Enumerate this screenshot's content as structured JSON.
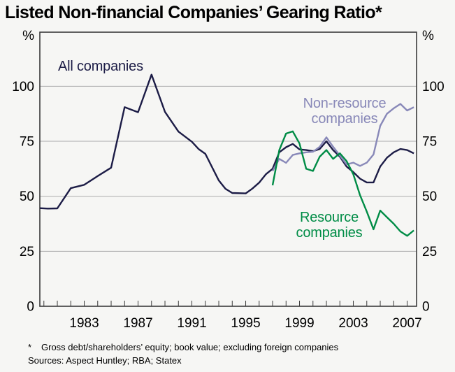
{
  "title": "Listed Non-financial Companies’ Gearing Ratio*",
  "footnote": {
    "marker": "*",
    "line1": "Gross debt/shareholders’ equity; book value; excluding foreign companies",
    "sources": "Sources: Aspect Huntley; RBA; Statex"
  },
  "chart_data": {
    "type": "line",
    "title": "Listed Non-financial Companies’ Gearing Ratio",
    "xlabel": "",
    "ylabel": "%",
    "x_axis": {
      "range": [
        1979.7,
        2007.7
      ],
      "tick_interval_years": 1,
      "label_years": [
        1983,
        1987,
        1991,
        1995,
        1999,
        2003,
        2007
      ]
    },
    "y_axis": {
      "unit": "%",
      "range": [
        0,
        124.6
      ],
      "ticks": [
        0,
        25,
        50,
        75,
        100
      ],
      "gridlines": [
        25,
        50,
        75,
        100
      ],
      "labels_both_sides": true
    },
    "grid": "horizontal-only",
    "legend_position": "inline-labels",
    "colors": {
      "all_companies": "#1c1c46",
      "non_resource": "#8888b8",
      "resource": "#008c46",
      "gridline": "#ababab",
      "frame": "#3b3b3b",
      "background": "#f6f6f4"
    },
    "series": [
      {
        "name": "All companies",
        "color": "#1c1c46",
        "points": [
          [
            1979.7,
            44.6
          ],
          [
            1980.3,
            44.4
          ],
          [
            1981,
            44.5
          ],
          [
            1982,
            53.7
          ],
          [
            1983,
            55.2
          ],
          [
            1984,
            59.2
          ],
          [
            1985,
            63
          ],
          [
            1986,
            90.5
          ],
          [
            1987,
            88.2
          ],
          [
            1988,
            105.3
          ],
          [
            1989,
            88.4
          ],
          [
            1990,
            79.4
          ],
          [
            1991,
            74.8
          ],
          [
            1991.5,
            71.5
          ],
          [
            1992,
            69.3
          ],
          [
            1993,
            57.2
          ],
          [
            1993.5,
            53.4
          ],
          [
            1994,
            51.5
          ],
          [
            1995,
            51.3
          ],
          [
            1995.5,
            53.5
          ],
          [
            1996,
            56.2
          ],
          [
            1996.5,
            60
          ],
          [
            1997,
            62.5
          ],
          [
            1997.5,
            70
          ],
          [
            1998,
            72.3
          ],
          [
            1998.5,
            73.8
          ],
          [
            1999,
            71.3
          ],
          [
            1999.5,
            71
          ],
          [
            2000,
            70.5
          ],
          [
            2000.5,
            71.5
          ],
          [
            2001,
            75
          ],
          [
            2001.5,
            71
          ],
          [
            2002,
            68
          ],
          [
            2002.5,
            63.5
          ],
          [
            2003,
            61
          ],
          [
            2003.5,
            58
          ],
          [
            2004,
            56.3
          ],
          [
            2004.5,
            56.3
          ],
          [
            2005,
            63.5
          ],
          [
            2005.5,
            67.5
          ],
          [
            2006,
            70
          ],
          [
            2006.5,
            71.5
          ],
          [
            2007,
            71
          ],
          [
            2007.5,
            69.5
          ]
        ]
      },
      {
        "name": "Non-resource companies",
        "color": "#8888b8",
        "points": [
          [
            1997,
            61.5
          ],
          [
            1997.5,
            67
          ],
          [
            1998,
            65.2
          ],
          [
            1998.5,
            68.8
          ],
          [
            1999,
            69.5
          ],
          [
            1999.5,
            70
          ],
          [
            2000,
            70.2
          ],
          [
            2000.5,
            72.5
          ],
          [
            2001,
            76.8
          ],
          [
            2001.5,
            72.5
          ],
          [
            2002,
            68.5
          ],
          [
            2002.5,
            64.5
          ],
          [
            2003,
            65.3
          ],
          [
            2003.5,
            63.8
          ],
          [
            2004,
            65.3
          ],
          [
            2004.5,
            69
          ],
          [
            2005,
            82
          ],
          [
            2005.5,
            87.5
          ],
          [
            2006,
            90
          ],
          [
            2006.5,
            92
          ],
          [
            2007,
            89
          ],
          [
            2007.5,
            90.5
          ]
        ]
      },
      {
        "name": "Resource companies",
        "color": "#008c46",
        "points": [
          [
            1997,
            55
          ],
          [
            1997.5,
            71
          ],
          [
            1998,
            78.5
          ],
          [
            1998.5,
            79.5
          ],
          [
            1999,
            74
          ],
          [
            1999.5,
            62.5
          ],
          [
            2000,
            61.5
          ],
          [
            2000.5,
            68
          ],
          [
            2001,
            71
          ],
          [
            2001.5,
            67
          ],
          [
            2002,
            69.5
          ],
          [
            2002.5,
            66
          ],
          [
            2003,
            60
          ],
          [
            2003.5,
            50.5
          ],
          [
            2004,
            43
          ],
          [
            2004.5,
            35
          ],
          [
            2005,
            43.5
          ],
          [
            2005.5,
            40.5
          ],
          [
            2006,
            37.5
          ],
          [
            2006.5,
            34
          ],
          [
            2007,
            32
          ],
          [
            2007.5,
            34.5
          ]
        ]
      }
    ]
  }
}
